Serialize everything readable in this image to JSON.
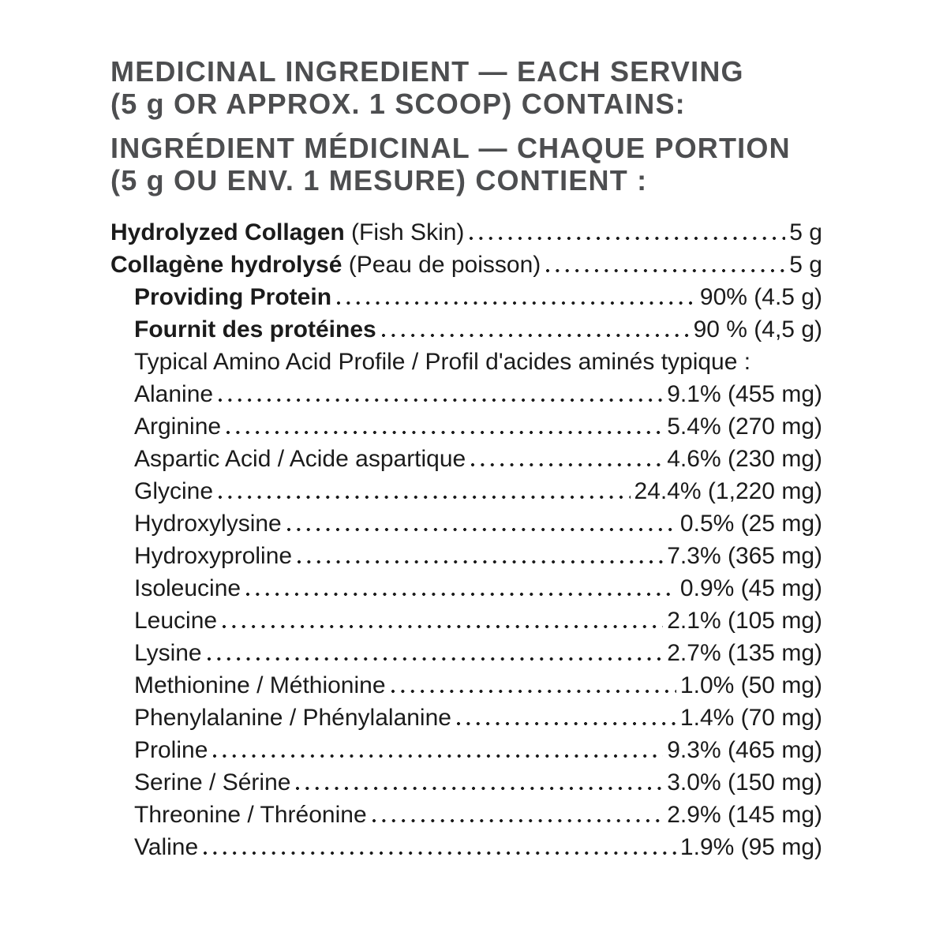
{
  "colors": {
    "heading": "#4d4e50",
    "body": "#1b1b1b",
    "background": "#ffffff"
  },
  "header": {
    "en": "MEDICINAL INGREDIENT — EACH SERVING\n(5 g OR APPROX. 1 SCOOP) CONTAINS:",
    "fr": "INGRÉDIENT MÉDICINAL — CHAQUE PORTION\n(5 g OU ENV. 1 MESURE) CONTIENT :"
  },
  "ingredients": {
    "rows": [
      {
        "strong": "Hydrolyzed Collagen",
        "rest": " (Fish Skin)",
        "value": "5 g",
        "indent": 0,
        "dots": true
      },
      {
        "strong": "Collagène hydrolysé",
        "rest": " (Peau de poisson)",
        "value": "5 g",
        "indent": 0,
        "dots": true
      },
      {
        "strong": "Providing Protein",
        "rest": "",
        "value": "90% (4.5 g)",
        "indent": 1,
        "dots": true
      },
      {
        "strong": "Fournit des protéines",
        "rest": "",
        "value": "90 % (4,5 g)",
        "indent": 1,
        "dots": true
      },
      {
        "strong": "",
        "rest": "Typical Amino Acid Profile / Profil d'acides aminés typique :",
        "value": "",
        "indent": 1,
        "dots": false
      },
      {
        "strong": "",
        "rest": "Alanine ",
        "value": "9.1% (455 mg)",
        "indent": 1,
        "dots": true
      },
      {
        "strong": "",
        "rest": "Arginine ",
        "value": "5.4% (270 mg)",
        "indent": 1,
        "dots": true
      },
      {
        "strong": "",
        "rest": "Aspartic Acid / Acide aspartique ",
        "value": "4.6% (230 mg)",
        "indent": 1,
        "dots": true
      },
      {
        "strong": "",
        "rest": "Glycine",
        "value": "24.4% (1,220 mg)",
        "indent": 1,
        "dots": true
      },
      {
        "strong": "",
        "rest": "Hydroxylysine ",
        "value": "0.5% (25 mg)",
        "indent": 1,
        "dots": true
      },
      {
        "strong": "",
        "rest": "Hydroxyproline ",
        "value": "7.3% (365 mg)",
        "indent": 1,
        "dots": true
      },
      {
        "strong": "",
        "rest": "Isoleucine ",
        "value": "0.9% (45 mg)",
        "indent": 1,
        "dots": true
      },
      {
        "strong": "",
        "rest": "Leucine",
        "value": "2.1% (105 mg)",
        "indent": 1,
        "dots": true
      },
      {
        "strong": "",
        "rest": "Lysine ",
        "value": "2.7% (135 mg)",
        "indent": 1,
        "dots": true
      },
      {
        "strong": "",
        "rest": "Methionine / Méthionine ",
        "value": "1.0%  (50 mg)",
        "indent": 1,
        "dots": true
      },
      {
        "strong": "",
        "rest": "Phenylalanine / Phénylalanine ",
        "value": "1.4% (70 mg)",
        "indent": 1,
        "dots": true
      },
      {
        "strong": "",
        "rest": "Proline",
        "value": "9.3% (465 mg)",
        "indent": 1,
        "dots": true
      },
      {
        "strong": "",
        "rest": "Serine / Sérine",
        "value": "3.0% (150 mg)",
        "indent": 1,
        "dots": true
      },
      {
        "strong": "",
        "rest": "Threonine / Thréonine ",
        "value": "2.9% (145 mg)",
        "indent": 1,
        "dots": true
      },
      {
        "strong": "",
        "rest": "Valine",
        "value": "1.9% (95 mg)",
        "indent": 1,
        "dots": true
      }
    ]
  }
}
